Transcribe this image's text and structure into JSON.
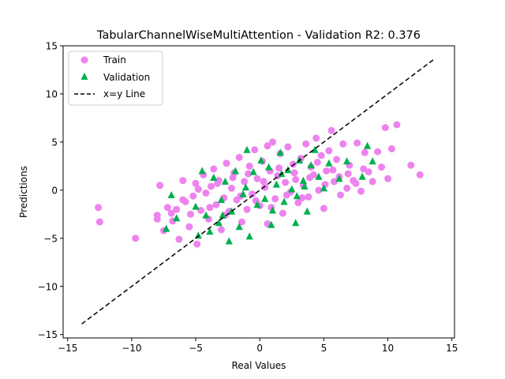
{
  "chart_data": {
    "type": "scatter",
    "title": "TabularChannelWiseMultiAttention - Validation R2: 0.376",
    "xlabel": "Real Values",
    "ylabel": "Predictions",
    "xlim": [
      -15.35,
      15.2
    ],
    "ylim": [
      -15.35,
      15.0
    ],
    "xticks": [
      -15,
      -10,
      -5,
      0,
      5,
      10,
      15
    ],
    "yticks": [
      -15,
      -10,
      -5,
      0,
      5,
      10,
      15
    ],
    "grid": false,
    "legend_position": "top-left",
    "series": [
      {
        "name": "Train",
        "marker": "circle",
        "color": "#ee82ee",
        "points": [
          [
            -12.6,
            -1.8
          ],
          [
            -12.5,
            -3.3
          ],
          [
            -9.7,
            -5.0
          ],
          [
            -8.0,
            -2.6
          ],
          [
            -8.0,
            -3.0
          ],
          [
            -7.8,
            0.5
          ],
          [
            -7.5,
            -4.2
          ],
          [
            -7.2,
            -1.8
          ],
          [
            -6.9,
            -2.4
          ],
          [
            -6.8,
            -3.2
          ],
          [
            -6.5,
            -2.0
          ],
          [
            -6.3,
            -5.1
          ],
          [
            -6.0,
            1.0
          ],
          [
            -5.8,
            -1.2
          ],
          [
            -5.5,
            -3.8
          ],
          [
            -5.2,
            -0.6
          ],
          [
            -5.0,
            0.7
          ],
          [
            -4.9,
            -5.6
          ],
          [
            -4.6,
            -2.1
          ],
          [
            -4.4,
            1.6
          ],
          [
            -4.2,
            -0.3
          ],
          [
            -4.0,
            -3.0
          ],
          [
            -3.8,
            0.4
          ],
          [
            -3.6,
            2.2
          ],
          [
            -3.4,
            -1.5
          ],
          [
            -3.2,
            1.0
          ],
          [
            -3.0,
            -4.1
          ],
          [
            -2.8,
            -0.8
          ],
          [
            -2.6,
            2.8
          ],
          [
            -2.4,
            -2.2
          ],
          [
            -2.2,
            0.2
          ],
          [
            -2.0,
            1.8
          ],
          [
            -1.8,
            -1.0
          ],
          [
            -1.6,
            3.4
          ],
          [
            -1.4,
            -3.3
          ],
          [
            -1.2,
            0.9
          ],
          [
            -1.0,
            -2.0
          ],
          [
            -0.8,
            2.5
          ],
          [
            -0.6,
            -0.4
          ],
          [
            -0.4,
            4.2
          ],
          [
            -0.2,
            1.2
          ],
          [
            0.0,
            -1.6
          ],
          [
            0.2,
            3.0
          ],
          [
            0.4,
            0.3
          ],
          [
            0.6,
            -3.5
          ],
          [
            0.8,
            2.0
          ],
          [
            1.0,
            5.0
          ],
          [
            1.2,
            -0.9
          ],
          [
            1.4,
            1.5
          ],
          [
            1.6,
            3.8
          ],
          [
            1.8,
            -2.4
          ],
          [
            2.0,
            0.8
          ],
          [
            2.2,
            4.5
          ],
          [
            2.4,
            -0.2
          ],
          [
            2.6,
            2.7
          ],
          [
            2.8,
            1.1
          ],
          [
            3.0,
            -1.3
          ],
          [
            3.2,
            3.3
          ],
          [
            3.4,
            0.5
          ],
          [
            3.6,
            4.8
          ],
          [
            3.8,
            -0.7
          ],
          [
            4.0,
            2.4
          ],
          [
            4.2,
            1.6
          ],
          [
            4.4,
            5.4
          ],
          [
            4.6,
            0.0
          ],
          [
            4.8,
            3.6
          ],
          [
            5.0,
            -1.9
          ],
          [
            5.2,
            2.0
          ],
          [
            5.4,
            4.1
          ],
          [
            5.6,
            6.2
          ],
          [
            5.8,
            0.9
          ],
          [
            6.0,
            3.2
          ],
          [
            6.2,
            1.4
          ],
          [
            6.5,
            4.8
          ],
          [
            6.8,
            0.2
          ],
          [
            7.0,
            2.6
          ],
          [
            7.3,
            1.0
          ],
          [
            7.6,
            4.9
          ],
          [
            7.9,
            -0.1
          ],
          [
            8.2,
            3.9
          ],
          [
            8.5,
            1.9
          ],
          [
            8.8,
            0.9
          ],
          [
            9.2,
            4.0
          ],
          [
            9.5,
            2.4
          ],
          [
            9.8,
            6.5
          ],
          [
            10.0,
            1.2
          ],
          [
            10.3,
            4.3
          ],
          [
            10.7,
            6.8
          ],
          [
            11.8,
            2.6
          ],
          [
            12.5,
            1.6
          ],
          [
            -6.0,
            -1.0
          ],
          [
            -5.4,
            -2.5
          ],
          [
            -4.8,
            0.1
          ],
          [
            -3.9,
            -1.8
          ],
          [
            -3.3,
            0.7
          ],
          [
            -2.7,
            -2.6
          ],
          [
            -2.1,
            1.3
          ],
          [
            -1.5,
            -0.6
          ],
          [
            -0.9,
            1.7
          ],
          [
            -0.3,
            -1.1
          ],
          [
            0.3,
            0.9
          ],
          [
            0.9,
            -1.8
          ],
          [
            1.5,
            2.3
          ],
          [
            2.1,
            -0.5
          ],
          [
            2.7,
            1.8
          ],
          [
            3.3,
            -0.8
          ],
          [
            3.9,
            1.3
          ],
          [
            4.5,
            2.9
          ],
          [
            5.1,
            0.6
          ],
          [
            5.7,
            2.1
          ],
          [
            6.3,
            -0.5
          ],
          [
            6.9,
            1.7
          ],
          [
            7.5,
            0.7
          ],
          [
            8.1,
            2.2
          ],
          [
            0.6,
            4.6
          ]
        ]
      },
      {
        "name": "Validation",
        "marker": "triangle",
        "color": "#00b050",
        "points": [
          [
            -7.3,
            -4.0
          ],
          [
            -6.9,
            -0.5
          ],
          [
            -6.5,
            -2.9
          ],
          [
            -4.8,
            -4.7
          ],
          [
            -4.5,
            2.0
          ],
          [
            -4.2,
            -2.6
          ],
          [
            -3.9,
            -4.3
          ],
          [
            -3.6,
            1.3
          ],
          [
            -3.2,
            -3.4
          ],
          [
            -3.0,
            -1.0
          ],
          [
            -2.7,
            0.9
          ],
          [
            -2.4,
            -5.3
          ],
          [
            -2.2,
            -2.2
          ],
          [
            -1.9,
            2.0
          ],
          [
            -1.6,
            -3.8
          ],
          [
            -1.3,
            -0.4
          ],
          [
            -1.0,
            4.2
          ],
          [
            -0.8,
            -4.8
          ],
          [
            -0.5,
            1.9
          ],
          [
            -0.2,
            -1.5
          ],
          [
            0.1,
            3.1
          ],
          [
            0.4,
            -0.9
          ],
          [
            0.7,
            2.4
          ],
          [
            1.0,
            -2.1
          ],
          [
            1.3,
            0.6
          ],
          [
            1.6,
            3.9
          ],
          [
            1.9,
            -1.2
          ],
          [
            2.2,
            2.1
          ],
          [
            2.5,
            0.1
          ],
          [
            2.8,
            -3.4
          ],
          [
            3.1,
            3.1
          ],
          [
            3.4,
            1.0
          ],
          [
            3.7,
            -2.2
          ],
          [
            4.0,
            2.6
          ],
          [
            4.3,
            4.2
          ],
          [
            4.6,
            1.4
          ],
          [
            5.0,
            0.2
          ],
          [
            5.4,
            2.8
          ],
          [
            6.2,
            1.2
          ],
          [
            6.8,
            3.0
          ],
          [
            8.0,
            1.4
          ],
          [
            8.4,
            4.6
          ],
          [
            8.8,
            3.0
          ],
          [
            -5.0,
            -1.7
          ],
          [
            0.9,
            -3.6
          ],
          [
            1.7,
            1.7
          ],
          [
            2.9,
            -0.6
          ],
          [
            -2.9,
            -2.6
          ],
          [
            -1.1,
            0.3
          ],
          [
            3.5,
            0.4
          ]
        ]
      },
      {
        "name": "x=y Line",
        "marker": "dashed-line",
        "color": "#000000",
        "points": [
          [
            -13.9,
            -13.9
          ],
          [
            13.6,
            13.6
          ]
        ]
      }
    ]
  }
}
